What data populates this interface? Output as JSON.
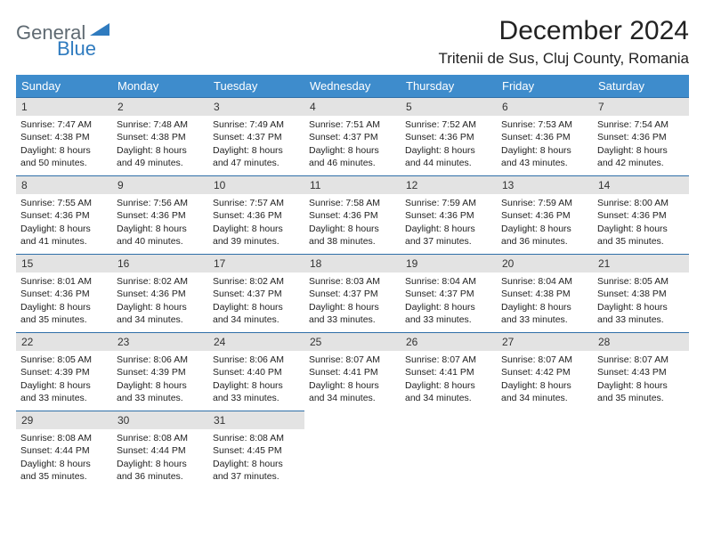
{
  "logo": {
    "general": "General",
    "blue": "Blue"
  },
  "title": "December 2024",
  "location": "Tritenii de Sus, Cluj County, Romania",
  "colors": {
    "header_bg": "#3e8ccc",
    "header_text": "#ffffff",
    "daynum_bg": "#e3e3e3",
    "row_border": "#2f6fa8",
    "logo_gray": "#5f6a72",
    "logo_blue": "#2f7bbf"
  },
  "weekdays": [
    "Sunday",
    "Monday",
    "Tuesday",
    "Wednesday",
    "Thursday",
    "Friday",
    "Saturday"
  ],
  "days": [
    {
      "n": "1",
      "sr": "7:47 AM",
      "ss": "4:38 PM",
      "dl": "8 hours and 50 minutes."
    },
    {
      "n": "2",
      "sr": "7:48 AM",
      "ss": "4:38 PM",
      "dl": "8 hours and 49 minutes."
    },
    {
      "n": "3",
      "sr": "7:49 AM",
      "ss": "4:37 PM",
      "dl": "8 hours and 47 minutes."
    },
    {
      "n": "4",
      "sr": "7:51 AM",
      "ss": "4:37 PM",
      "dl": "8 hours and 46 minutes."
    },
    {
      "n": "5",
      "sr": "7:52 AM",
      "ss": "4:36 PM",
      "dl": "8 hours and 44 minutes."
    },
    {
      "n": "6",
      "sr": "7:53 AM",
      "ss": "4:36 PM",
      "dl": "8 hours and 43 minutes."
    },
    {
      "n": "7",
      "sr": "7:54 AM",
      "ss": "4:36 PM",
      "dl": "8 hours and 42 minutes."
    },
    {
      "n": "8",
      "sr": "7:55 AM",
      "ss": "4:36 PM",
      "dl": "8 hours and 41 minutes."
    },
    {
      "n": "9",
      "sr": "7:56 AM",
      "ss": "4:36 PM",
      "dl": "8 hours and 40 minutes."
    },
    {
      "n": "10",
      "sr": "7:57 AM",
      "ss": "4:36 PM",
      "dl": "8 hours and 39 minutes."
    },
    {
      "n": "11",
      "sr": "7:58 AM",
      "ss": "4:36 PM",
      "dl": "8 hours and 38 minutes."
    },
    {
      "n": "12",
      "sr": "7:59 AM",
      "ss": "4:36 PM",
      "dl": "8 hours and 37 minutes."
    },
    {
      "n": "13",
      "sr": "7:59 AM",
      "ss": "4:36 PM",
      "dl": "8 hours and 36 minutes."
    },
    {
      "n": "14",
      "sr": "8:00 AM",
      "ss": "4:36 PM",
      "dl": "8 hours and 35 minutes."
    },
    {
      "n": "15",
      "sr": "8:01 AM",
      "ss": "4:36 PM",
      "dl": "8 hours and 35 minutes."
    },
    {
      "n": "16",
      "sr": "8:02 AM",
      "ss": "4:36 PM",
      "dl": "8 hours and 34 minutes."
    },
    {
      "n": "17",
      "sr": "8:02 AM",
      "ss": "4:37 PM",
      "dl": "8 hours and 34 minutes."
    },
    {
      "n": "18",
      "sr": "8:03 AM",
      "ss": "4:37 PM",
      "dl": "8 hours and 33 minutes."
    },
    {
      "n": "19",
      "sr": "8:04 AM",
      "ss": "4:37 PM",
      "dl": "8 hours and 33 minutes."
    },
    {
      "n": "20",
      "sr": "8:04 AM",
      "ss": "4:38 PM",
      "dl": "8 hours and 33 minutes."
    },
    {
      "n": "21",
      "sr": "8:05 AM",
      "ss": "4:38 PM",
      "dl": "8 hours and 33 minutes."
    },
    {
      "n": "22",
      "sr": "8:05 AM",
      "ss": "4:39 PM",
      "dl": "8 hours and 33 minutes."
    },
    {
      "n": "23",
      "sr": "8:06 AM",
      "ss": "4:39 PM",
      "dl": "8 hours and 33 minutes."
    },
    {
      "n": "24",
      "sr": "8:06 AM",
      "ss": "4:40 PM",
      "dl": "8 hours and 33 minutes."
    },
    {
      "n": "25",
      "sr": "8:07 AM",
      "ss": "4:41 PM",
      "dl": "8 hours and 34 minutes."
    },
    {
      "n": "26",
      "sr": "8:07 AM",
      "ss": "4:41 PM",
      "dl": "8 hours and 34 minutes."
    },
    {
      "n": "27",
      "sr": "8:07 AM",
      "ss": "4:42 PM",
      "dl": "8 hours and 34 minutes."
    },
    {
      "n": "28",
      "sr": "8:07 AM",
      "ss": "4:43 PM",
      "dl": "8 hours and 35 minutes."
    },
    {
      "n": "29",
      "sr": "8:08 AM",
      "ss": "4:44 PM",
      "dl": "8 hours and 35 minutes."
    },
    {
      "n": "30",
      "sr": "8:08 AM",
      "ss": "4:44 PM",
      "dl": "8 hours and 36 minutes."
    },
    {
      "n": "31",
      "sr": "8:08 AM",
      "ss": "4:45 PM",
      "dl": "8 hours and 37 minutes."
    }
  ],
  "labels": {
    "sunrise": "Sunrise:",
    "sunset": "Sunset:",
    "daylight": "Daylight:"
  }
}
